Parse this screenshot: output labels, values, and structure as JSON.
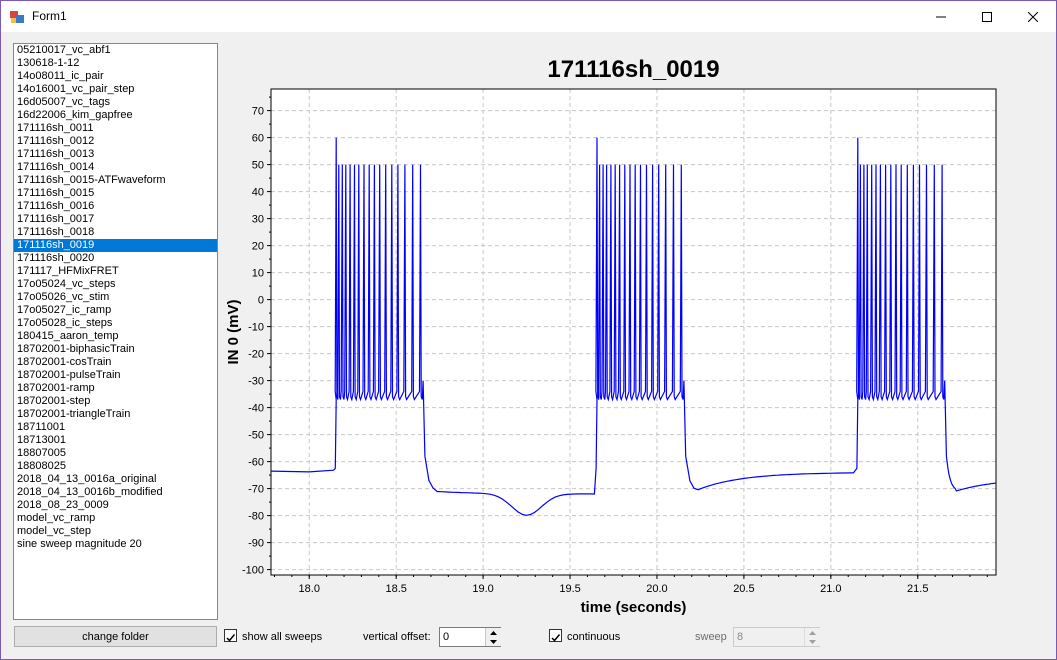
{
  "window": {
    "title": "Form1"
  },
  "files": {
    "items": [
      "05210017_vc_abf1",
      "130618-1-12",
      "14o08011_ic_pair",
      "14o16001_vc_pair_step",
      "16d05007_vc_tags",
      "16d22006_kim_gapfree",
      "171116sh_0011",
      "171116sh_0012",
      "171116sh_0013",
      "171116sh_0014",
      "171116sh_0015-ATFwaveform",
      "171116sh_0015",
      "171116sh_0016",
      "171116sh_0017",
      "171116sh_0018",
      "171116sh_0019",
      "171116sh_0020",
      "171117_HFMixFRET",
      "17o05024_vc_steps",
      "17o05026_vc_stim",
      "17o05027_ic_ramp",
      "17o05028_ic_steps",
      "180415_aaron_temp",
      "18702001-biphasicTrain",
      "18702001-cosTrain",
      "18702001-pulseTrain",
      "18702001-ramp",
      "18702001-step",
      "18702001-triangleTrain",
      "18711001",
      "18713001",
      "18807005",
      "18808025",
      "2018_04_13_0016a_original",
      "2018_04_13_0016b_modified",
      "2018_08_23_0009",
      "model_vc_ramp",
      "model_vc_step",
      "sine sweep magnitude 20"
    ],
    "selected_index": 15
  },
  "controls": {
    "change_folder_label": "change folder",
    "show_all_sweeps_label": "show all sweeps",
    "show_all_sweeps_checked": true,
    "vertical_offset_label": "vertical offset:",
    "vertical_offset_value": "0",
    "continuous_label": "continuous",
    "continuous_checked": true,
    "sweep_label": "sweep",
    "sweep_value": "8"
  },
  "chart_data": {
    "type": "line",
    "title": "171116sh_0019",
    "xlabel": "time (seconds)",
    "ylabel": "IN 0 (mV)",
    "xlim": [
      17.78,
      21.95
    ],
    "ylim": [
      -102,
      78
    ],
    "xticks": [
      18.0,
      18.5,
      19.0,
      19.5,
      20.0,
      20.5,
      21.0,
      21.5
    ],
    "yticks": [
      -100,
      -90,
      -80,
      -70,
      -60,
      -50,
      -40,
      -30,
      -20,
      -10,
      0,
      10,
      20,
      30,
      40,
      50,
      60,
      70
    ],
    "grid": true,
    "line_color": "#0000ff",
    "baseline_mv": -63.5,
    "bursts": [
      {
        "start": 18.15,
        "end": 18.65,
        "first_peak": 60,
        "peak": 50,
        "trough": -37,
        "spikes": [
          18.155,
          18.17,
          18.19,
          18.21,
          18.235,
          18.26,
          18.285,
          18.315,
          18.345,
          18.375,
          18.405,
          18.44,
          18.475,
          18.51,
          18.55,
          18.595,
          18.64
        ]
      },
      {
        "start": 19.65,
        "end": 20.15,
        "first_peak": 60,
        "peak": 50,
        "trough": -37,
        "spikes": [
          19.655,
          19.67,
          19.69,
          19.71,
          19.735,
          19.76,
          19.785,
          19.815,
          19.845,
          19.875,
          19.905,
          19.94,
          19.975,
          20.01,
          20.05,
          20.095,
          20.14
        ]
      },
      {
        "start": 21.15,
        "end": 21.65,
        "first_peak": 60,
        "peak": 50,
        "trough": -37,
        "spikes": [
          21.155,
          21.17,
          21.19,
          21.21,
          21.235,
          21.26,
          21.285,
          21.315,
          21.345,
          21.375,
          21.405,
          21.44,
          21.475,
          21.51,
          21.55,
          21.595,
          21.64
        ]
      }
    ],
    "after_hyperpolarization_mv": -71,
    "between_burst_dip_mv": -76
  }
}
